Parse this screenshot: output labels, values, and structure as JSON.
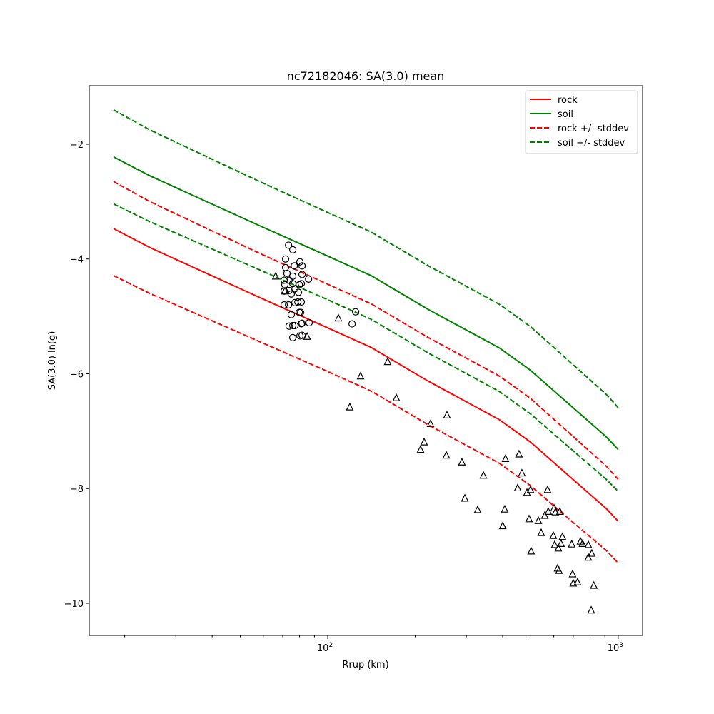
{
  "chart_data": {
    "type": "line",
    "title": "nc72182046: SA(3.0) mean",
    "xlabel": "Rrup (km)",
    "ylabel": "SA(3.0) ln(g)",
    "xscale": "log",
    "xlim": [
      15.1,
      1213
    ],
    "ylim": [
      -10.56,
      -0.98
    ],
    "xticks": [
      {
        "value": 100,
        "base": "10",
        "exp": "2"
      },
      {
        "value": 1000,
        "base": "10",
        "exp": "3"
      }
    ],
    "yticks": [
      {
        "value": -2,
        "label": "−2"
      },
      {
        "value": -4,
        "label": "−4"
      },
      {
        "value": -6,
        "label": "−6"
      },
      {
        "value": -8,
        "label": "−8"
      },
      {
        "value": -10,
        "label": "−10"
      }
    ],
    "grid": false,
    "legend_position": "top-right",
    "x": [
      18.3,
      24.4,
      57.1,
      100,
      141,
      222,
      390,
      499,
      688,
      910,
      1000
    ],
    "series": [
      {
        "name": "rock",
        "color": "#ff0000",
        "dash": false,
        "values": [
          -3.47,
          -3.8,
          -4.65,
          -5.2,
          -5.54,
          -6.13,
          -6.8,
          -7.19,
          -7.81,
          -8.35,
          -8.57
        ]
      },
      {
        "name": "soil",
        "color": "#008000",
        "dash": false,
        "values": [
          -2.22,
          -2.55,
          -3.4,
          -3.95,
          -4.29,
          -4.88,
          -5.55,
          -5.94,
          -6.56,
          -7.1,
          -7.32
        ]
      },
      {
        "name": "rock +/- stddev",
        "color": "#ff0000",
        "dash": true,
        "values": [
          -2.65,
          -3.0,
          -3.88,
          -4.44,
          -4.78,
          -5.37,
          -6.04,
          -6.43,
          -7.06,
          -7.61,
          -7.84
        ],
        "lower": [
          -4.29,
          -4.6,
          -5.42,
          -5.96,
          -6.3,
          -6.89,
          -7.56,
          -7.95,
          -8.56,
          -9.08,
          -9.3
        ]
      },
      {
        "name": "soil +/- stddev",
        "color": "#008000",
        "dash": true,
        "values": [
          -1.4,
          -1.75,
          -2.63,
          -3.19,
          -3.53,
          -4.12,
          -4.79,
          -5.18,
          -5.81,
          -6.36,
          -6.59
        ],
        "lower": [
          -3.04,
          -3.35,
          -4.17,
          -4.71,
          -5.05,
          -5.64,
          -6.31,
          -6.7,
          -7.31,
          -7.84,
          -8.05
        ]
      }
    ],
    "circles": [
      [
        73.3,
        -3.76
      ],
      [
        75.8,
        -3.84
      ],
      [
        71.6,
        -4.0
      ],
      [
        80.2,
        -4.05
      ],
      [
        81.6,
        -4.12
      ],
      [
        76.7,
        -4.12
      ],
      [
        71.6,
        -4.15
      ],
      [
        81.6,
        -4.27
      ],
      [
        75.8,
        -4.3
      ],
      [
        72.4,
        -4.25
      ],
      [
        85.9,
        -4.35
      ],
      [
        70.8,
        -4.37
      ],
      [
        73.6,
        -4.37
      ],
      [
        71.2,
        -4.45
      ],
      [
        75.8,
        -4.43
      ],
      [
        81.1,
        -4.43
      ],
      [
        79.8,
        -4.45
      ],
      [
        70.8,
        -4.56
      ],
      [
        73.6,
        -4.55
      ],
      [
        77.1,
        -4.52
      ],
      [
        74.9,
        -4.61
      ],
      [
        79.3,
        -4.58
      ],
      [
        70.8,
        -4.8
      ],
      [
        73.3,
        -4.8
      ],
      [
        77.1,
        -4.76
      ],
      [
        78.9,
        -4.75
      ],
      [
        81.1,
        -4.75
      ],
      [
        74.9,
        -4.97
      ],
      [
        79.8,
        -4.93
      ],
      [
        80.7,
        -4.93
      ],
      [
        86.3,
        -5.11
      ],
      [
        73.6,
        -5.17
      ],
      [
        75.8,
        -5.16
      ],
      [
        77.1,
        -5.16
      ],
      [
        81.1,
        -5.13
      ],
      [
        81.6,
        -5.12
      ],
      [
        75.8,
        -5.37
      ],
      [
        80.2,
        -5.34
      ],
      [
        81.6,
        -5.33
      ],
      [
        124.7,
        -4.92
      ],
      [
        121.3,
        -5.13
      ]
    ],
    "triangles": [
      [
        66.2,
        -4.3
      ],
      [
        71.2,
        -4.56
      ],
      [
        84.9,
        -5.35
      ],
      [
        108.8,
        -5.03
      ],
      [
        160.8,
        -5.79
      ],
      [
        129.7,
        -6.04
      ],
      [
        119.1,
        -6.58
      ],
      [
        172.2,
        -6.42
      ],
      [
        225.9,
        -6.87
      ],
      [
        257.2,
        -6.72
      ],
      [
        214.6,
        -7.19
      ],
      [
        208.6,
        -7.32
      ],
      [
        255.9,
        -7.42
      ],
      [
        289.6,
        -7.54
      ],
      [
        343.4,
        -7.77
      ],
      [
        296.4,
        -8.17
      ],
      [
        328.1,
        -8.37
      ],
      [
        409.1,
        -7.48
      ],
      [
        455.3,
        -7.4
      ],
      [
        465.9,
        -7.73
      ],
      [
        450.6,
        -7.99
      ],
      [
        485.0,
        -8.07
      ],
      [
        498.8,
        -8.02
      ],
      [
        571.2,
        -8.02
      ],
      [
        406.8,
        -8.36
      ],
      [
        400.3,
        -8.65
      ],
      [
        493.1,
        -8.53
      ],
      [
        530.9,
        -8.56
      ],
      [
        558.5,
        -8.47
      ],
      [
        574.3,
        -8.4
      ],
      [
        601.2,
        -8.34
      ],
      [
        607.8,
        -8.41
      ],
      [
        629.5,
        -8.4
      ],
      [
        543.0,
        -8.77
      ],
      [
        597.7,
        -8.82
      ],
      [
        642.7,
        -8.84
      ],
      [
        604.2,
        -8.98
      ],
      [
        635.3,
        -8.96
      ],
      [
        622.0,
        -9.04
      ],
      [
        691.8,
        -8.97
      ],
      [
        741.3,
        -8.92
      ],
      [
        753.4,
        -8.96
      ],
      [
        788.9,
        -8.98
      ],
      [
        811.0,
        -9.13
      ],
      [
        788.9,
        -9.2
      ],
      [
        501.2,
        -9.09
      ],
      [
        618.1,
        -9.39
      ],
      [
        625.2,
        -9.43
      ],
      [
        696.6,
        -9.49
      ],
      [
        699.8,
        -9.65
      ],
      [
        724.4,
        -9.63
      ],
      [
        824.1,
        -9.69
      ],
      [
        807.2,
        -10.12
      ]
    ]
  }
}
